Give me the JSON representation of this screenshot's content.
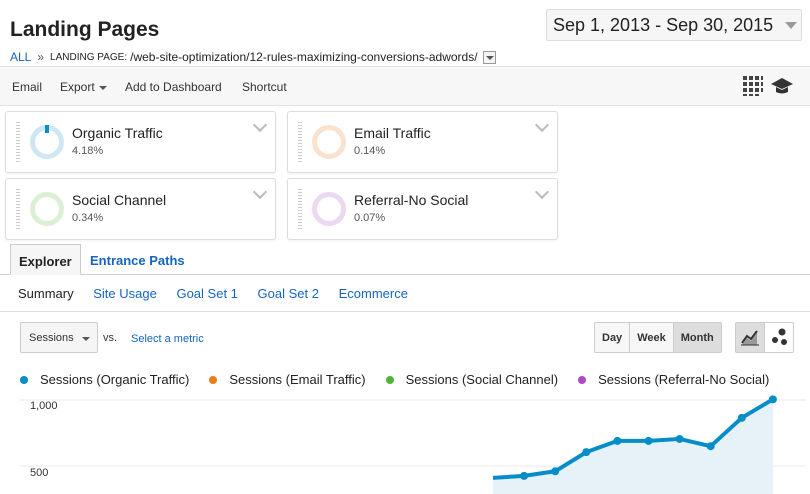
{
  "header": {
    "title": "Landing Pages",
    "date_range": "Sep 1, 2013 - Sep 30, 2015"
  },
  "breadcrumb": {
    "all": "ALL",
    "separator": "»",
    "label": "LANDING PAGE:",
    "path": "/web-site-optimization/12-rules-maximizing-conversions-adwords/"
  },
  "toolbar": {
    "email": "Email",
    "export": "Export",
    "add_to_dashboard": "Add to Dashboard",
    "shortcut": "Shortcut",
    "icons": [
      "table-view-icon",
      "graduation-cap-icon"
    ]
  },
  "segments": [
    {
      "name": "Organic Traffic",
      "pct": "4.18%",
      "color": "#058dc7"
    },
    {
      "name": "Email Traffic",
      "pct": "0.14%",
      "color": "#ed7e17"
    },
    {
      "name": "Social Channel",
      "pct": "0.34%",
      "color": "#50b432"
    },
    {
      "name": "Referral-No Social",
      "pct": "0.07%",
      "color": "#af49c5"
    }
  ],
  "tabs": {
    "explorer": "Explorer",
    "entrance_paths": "Entrance Paths"
  },
  "subtabs": [
    "Summary",
    "Site Usage",
    "Goal Set 1",
    "Goal Set 2",
    "Ecommerce"
  ],
  "controls": {
    "metric": "Sessions",
    "vs": "vs.",
    "select_metric": "Select a metric",
    "periods": [
      "Day",
      "Week",
      "Month"
    ],
    "selected_period": "Month"
  },
  "chart_data": {
    "type": "area",
    "series": [
      {
        "name": "Sessions (Organic Traffic)",
        "color": "#058dc7"
      },
      {
        "name": "Sessions (Email Traffic)",
        "color": "#ed7e17"
      },
      {
        "name": "Sessions (Social Channel)",
        "color": "#50b432"
      },
      {
        "name": "Sessions (Referral-No Social)",
        "color": "#af49c5"
      }
    ],
    "yticks": [
      "1,000",
      "500"
    ],
    "organic_visible_points": [
      {
        "i": 0,
        "y": 410
      },
      {
        "i": 1,
        "y": 425
      },
      {
        "i": 2,
        "y": 460
      },
      {
        "i": 3,
        "y": 605
      },
      {
        "i": 4,
        "y": 690
      },
      {
        "i": 5,
        "y": 690
      },
      {
        "i": 6,
        "y": 705
      },
      {
        "i": 7,
        "y": 650
      },
      {
        "i": 8,
        "y": 865
      },
      {
        "i": 9,
        "y": 1005
      }
    ]
  }
}
